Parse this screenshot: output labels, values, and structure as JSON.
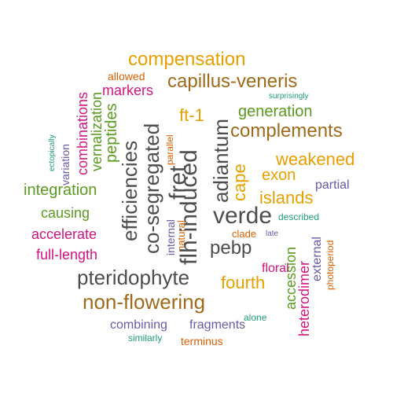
{
  "colors": {
    "gray": "#4d4d4d",
    "brown": "#a06a1a",
    "gold": "#e6a000",
    "green": "#5a9a1f",
    "magenta": "#d1147e",
    "purple": "#6a5aa8",
    "teal": "#1f9e77",
    "orange": "#d95f02"
  },
  "words": [
    {
      "text": "compensation",
      "color": "gold",
      "size": 24
    },
    {
      "text": "capillus-veneris",
      "color": "brown",
      "size": 24
    },
    {
      "text": "allowed",
      "color": "orange",
      "size": 14
    },
    {
      "text": "markers",
      "color": "magenta",
      "size": 18
    },
    {
      "text": "surprisingly",
      "color": "teal",
      "size": 10
    },
    {
      "text": "generation",
      "color": "green",
      "size": 20
    },
    {
      "text": "complements",
      "color": "brown",
      "size": 24
    },
    {
      "text": "ft-1",
      "color": "gold",
      "size": 22
    },
    {
      "text": "weakened",
      "color": "gold",
      "size": 22
    },
    {
      "text": "exon",
      "color": "gold",
      "size": 20
    },
    {
      "text": "partial",
      "color": "purple",
      "size": 16
    },
    {
      "text": "islands",
      "color": "gold",
      "size": 22
    },
    {
      "text": "integration",
      "color": "green",
      "size": 20
    },
    {
      "text": "causing",
      "color": "green",
      "size": 18
    },
    {
      "text": "accelerate",
      "color": "magenta",
      "size": 18
    },
    {
      "text": "full-length",
      "color": "magenta",
      "size": 18
    },
    {
      "text": "verde",
      "color": "gray",
      "size": 30
    },
    {
      "text": "described",
      "color": "teal",
      "size": 12
    },
    {
      "text": "clade",
      "color": "orange",
      "size": 13
    },
    {
      "text": "late",
      "color": "purple",
      "size": 10
    },
    {
      "text": "pebp",
      "color": "gray",
      "size": 24
    },
    {
      "text": "floral",
      "color": "magenta",
      "size": 16
    },
    {
      "text": "fourth",
      "color": "gold",
      "size": 22
    },
    {
      "text": "pteridophyte",
      "color": "gray",
      "size": 26
    },
    {
      "text": "non-flowering",
      "color": "brown",
      "size": 26
    },
    {
      "text": "alone",
      "color": "teal",
      "size": 12
    },
    {
      "text": "combining",
      "color": "purple",
      "size": 16
    },
    {
      "text": "fragments",
      "color": "purple",
      "size": 16
    },
    {
      "text": "similarly",
      "color": "teal",
      "size": 12
    },
    {
      "text": "terminus",
      "color": "orange",
      "size": 14
    },
    {
      "text": "combinations",
      "color": "magenta",
      "size": 18
    },
    {
      "text": "vernalization",
      "color": "green",
      "size": 18
    },
    {
      "text": "variation",
      "color": "purple",
      "size": 14
    },
    {
      "text": "ectopically",
      "color": "teal",
      "size": 10
    },
    {
      "text": "peptides",
      "color": "green",
      "size": 20
    },
    {
      "text": "efficiencies",
      "color": "gray",
      "size": 26
    },
    {
      "text": "co-segregated",
      "color": "gray",
      "size": 26
    },
    {
      "text": "internal",
      "color": "purple",
      "size": 14
    },
    {
      "text": "natural",
      "color": "orange",
      "size": 13
    },
    {
      "text": "parallel",
      "color": "orange",
      "size": 12
    },
    {
      "text": "flh-induced",
      "color": "gray",
      "size": 30
    },
    {
      "text": "fret",
      "color": "gray",
      "size": 30
    },
    {
      "text": "adiantum",
      "color": "gray",
      "size": 26
    },
    {
      "text": "cape",
      "color": "gold",
      "size": 22
    },
    {
      "text": "accession",
      "color": "green",
      "size": 18
    },
    {
      "text": "heterodimer",
      "color": "magenta",
      "size": 18
    },
    {
      "text": "external",
      "color": "purple",
      "size": 16
    },
    {
      "text": "photoperiod",
      "color": "orange",
      "size": 12
    }
  ]
}
